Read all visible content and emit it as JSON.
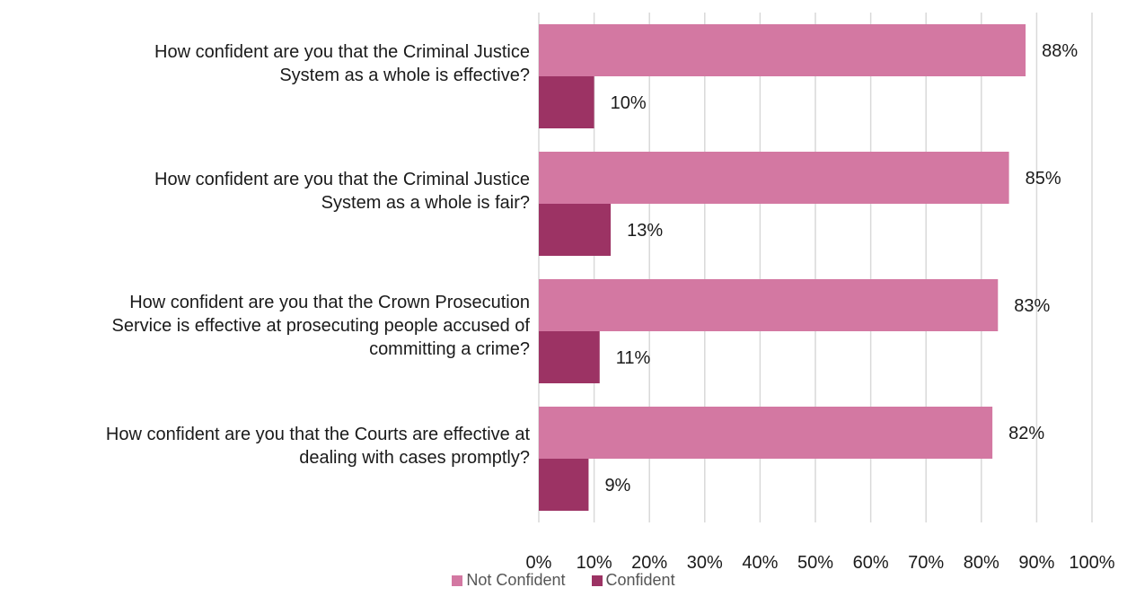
{
  "chart_data": {
    "type": "bar",
    "orientation": "horizontal",
    "categories": [
      [
        "How confident are you that the Criminal Justice",
        "System as a whole is effective?"
      ],
      [
        "How confident are you that the Criminal Justice",
        "System as a whole is fair?"
      ],
      [
        "How confident are you that the Crown Prosecution",
        "Service is effective at prosecuting people accused of",
        "committing a crime?"
      ],
      [
        "How confident are you that the Courts are effective at",
        "dealing with cases promptly?"
      ]
    ],
    "series": [
      {
        "name": "Not Confident",
        "color": "#d378a2",
        "values": [
          88,
          85,
          83,
          82
        ],
        "labels": [
          "88%",
          "85%",
          "83%",
          "82%"
        ]
      },
      {
        "name": "Confident",
        "color": "#9c3364",
        "values": [
          10,
          13,
          11,
          9
        ],
        "labels": [
          "10%",
          "13%",
          "11%",
          "9%"
        ]
      }
    ],
    "xlim": [
      0,
      100
    ],
    "xticks": [
      "0%",
      "10%",
      "20%",
      "30%",
      "40%",
      "50%",
      "60%",
      "70%",
      "80%",
      "90%",
      "100%"
    ],
    "grid": true,
    "gridline_color": "#d9d9d9",
    "legend_position": "bottom"
  }
}
